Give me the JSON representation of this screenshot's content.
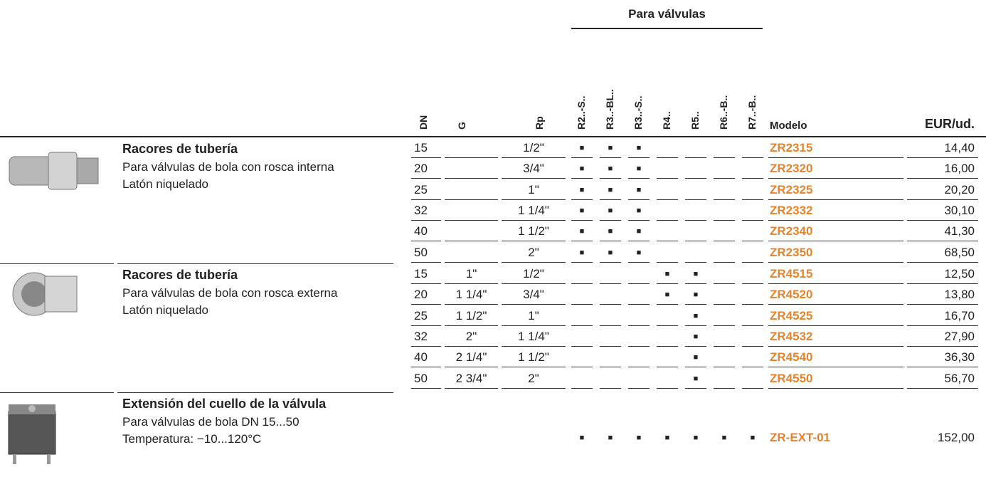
{
  "header": {
    "group_title": "Para válvulas",
    "columns": {
      "dn": "DN",
      "g": "G",
      "rp": "Rp",
      "valves": [
        "R2..-S..",
        "R3..-BL..",
        "R3..-S..",
        "R4..",
        "R5..",
        "R6..-B..",
        "R7..-B.."
      ],
      "model": "Modelo",
      "price": "EUR/ud."
    }
  },
  "groups": [
    {
      "title": "Racores de tubería",
      "lines": [
        "Para válvulas de bola con rosca interna",
        "Latón niquelado"
      ],
      "rows": [
        {
          "dn": "15",
          "g": null,
          "rp": "1/2\"",
          "valves": [
            "■",
            "■",
            "■",
            null,
            null,
            null,
            null
          ],
          "model": "ZR2315",
          "price": "14,40"
        },
        {
          "dn": "20",
          "g": null,
          "rp": "3/4\"",
          "valves": [
            "■",
            "■",
            "■",
            null,
            null,
            null,
            null
          ],
          "model": "ZR2320",
          "price": "16,00"
        },
        {
          "dn": "25",
          "g": null,
          "rp": "1\"",
          "valves": [
            "■",
            "■",
            "■",
            null,
            null,
            null,
            null
          ],
          "model": "ZR2325",
          "price": "20,20"
        },
        {
          "dn": "32",
          "g": null,
          "rp": "1 1/4\"",
          "valves": [
            "■",
            "■",
            "■",
            null,
            null,
            null,
            null
          ],
          "model": "ZR2332",
          "price": "30,10"
        },
        {
          "dn": "40",
          "g": null,
          "rp": "1 1/2\"",
          "valves": [
            "■",
            "■",
            "■",
            null,
            null,
            null,
            null
          ],
          "model": "ZR2340",
          "price": "41,30"
        },
        {
          "dn": "50",
          "g": null,
          "rp": "2\"",
          "valves": [
            "■",
            "■",
            "■",
            null,
            null,
            null,
            null
          ],
          "model": "ZR2350",
          "price": "68,50"
        }
      ]
    },
    {
      "title": "Racores de tubería",
      "lines": [
        "Para válvulas de bola con rosca externa",
        "Latón niquelado"
      ],
      "rows": [
        {
          "dn": "15",
          "g": "1\"",
          "rp": "1/2\"",
          "valves": [
            null,
            null,
            null,
            "■",
            "■",
            null,
            null
          ],
          "model": "ZR4515",
          "price": "12,50"
        },
        {
          "dn": "20",
          "g": "1 1/4\"",
          "rp": "3/4\"",
          "valves": [
            null,
            null,
            null,
            "■",
            "■",
            null,
            null
          ],
          "model": "ZR4520",
          "price": "13,80"
        },
        {
          "dn": "25",
          "g": "1 1/2\"",
          "rp": "1\"",
          "valves": [
            null,
            null,
            null,
            null,
            "■",
            null,
            null
          ],
          "model": "ZR4525",
          "price": "16,70"
        },
        {
          "dn": "32",
          "g": "2\"",
          "rp": "1 1/4\"",
          "valves": [
            null,
            null,
            null,
            null,
            "■",
            null,
            null
          ],
          "model": "ZR4532",
          "price": "27,90"
        },
        {
          "dn": "40",
          "g": "2 1/4\"",
          "rp": "1 1/2\"",
          "valves": [
            null,
            null,
            null,
            null,
            "■",
            null,
            null
          ],
          "model": "ZR4540",
          "price": "36,30"
        },
        {
          "dn": "50",
          "g": "2 3/4\"",
          "rp": "2\"",
          "valves": [
            null,
            null,
            null,
            null,
            "■",
            null,
            null
          ],
          "model": "ZR4550",
          "price": "56,70"
        }
      ]
    },
    {
      "title": "Extensión del cuello de la válvula",
      "lines": [
        "Para válvulas de bola DN 15...50",
        "Temperatura: −10...120°C"
      ],
      "rows": [
        {
          "dn": null,
          "g": null,
          "rp": null,
          "valves": [
            "■",
            "■",
            "■",
            "■",
            "■",
            "■",
            "■"
          ],
          "model": "ZR-EXT-01",
          "price": "152,00"
        }
      ]
    }
  ]
}
